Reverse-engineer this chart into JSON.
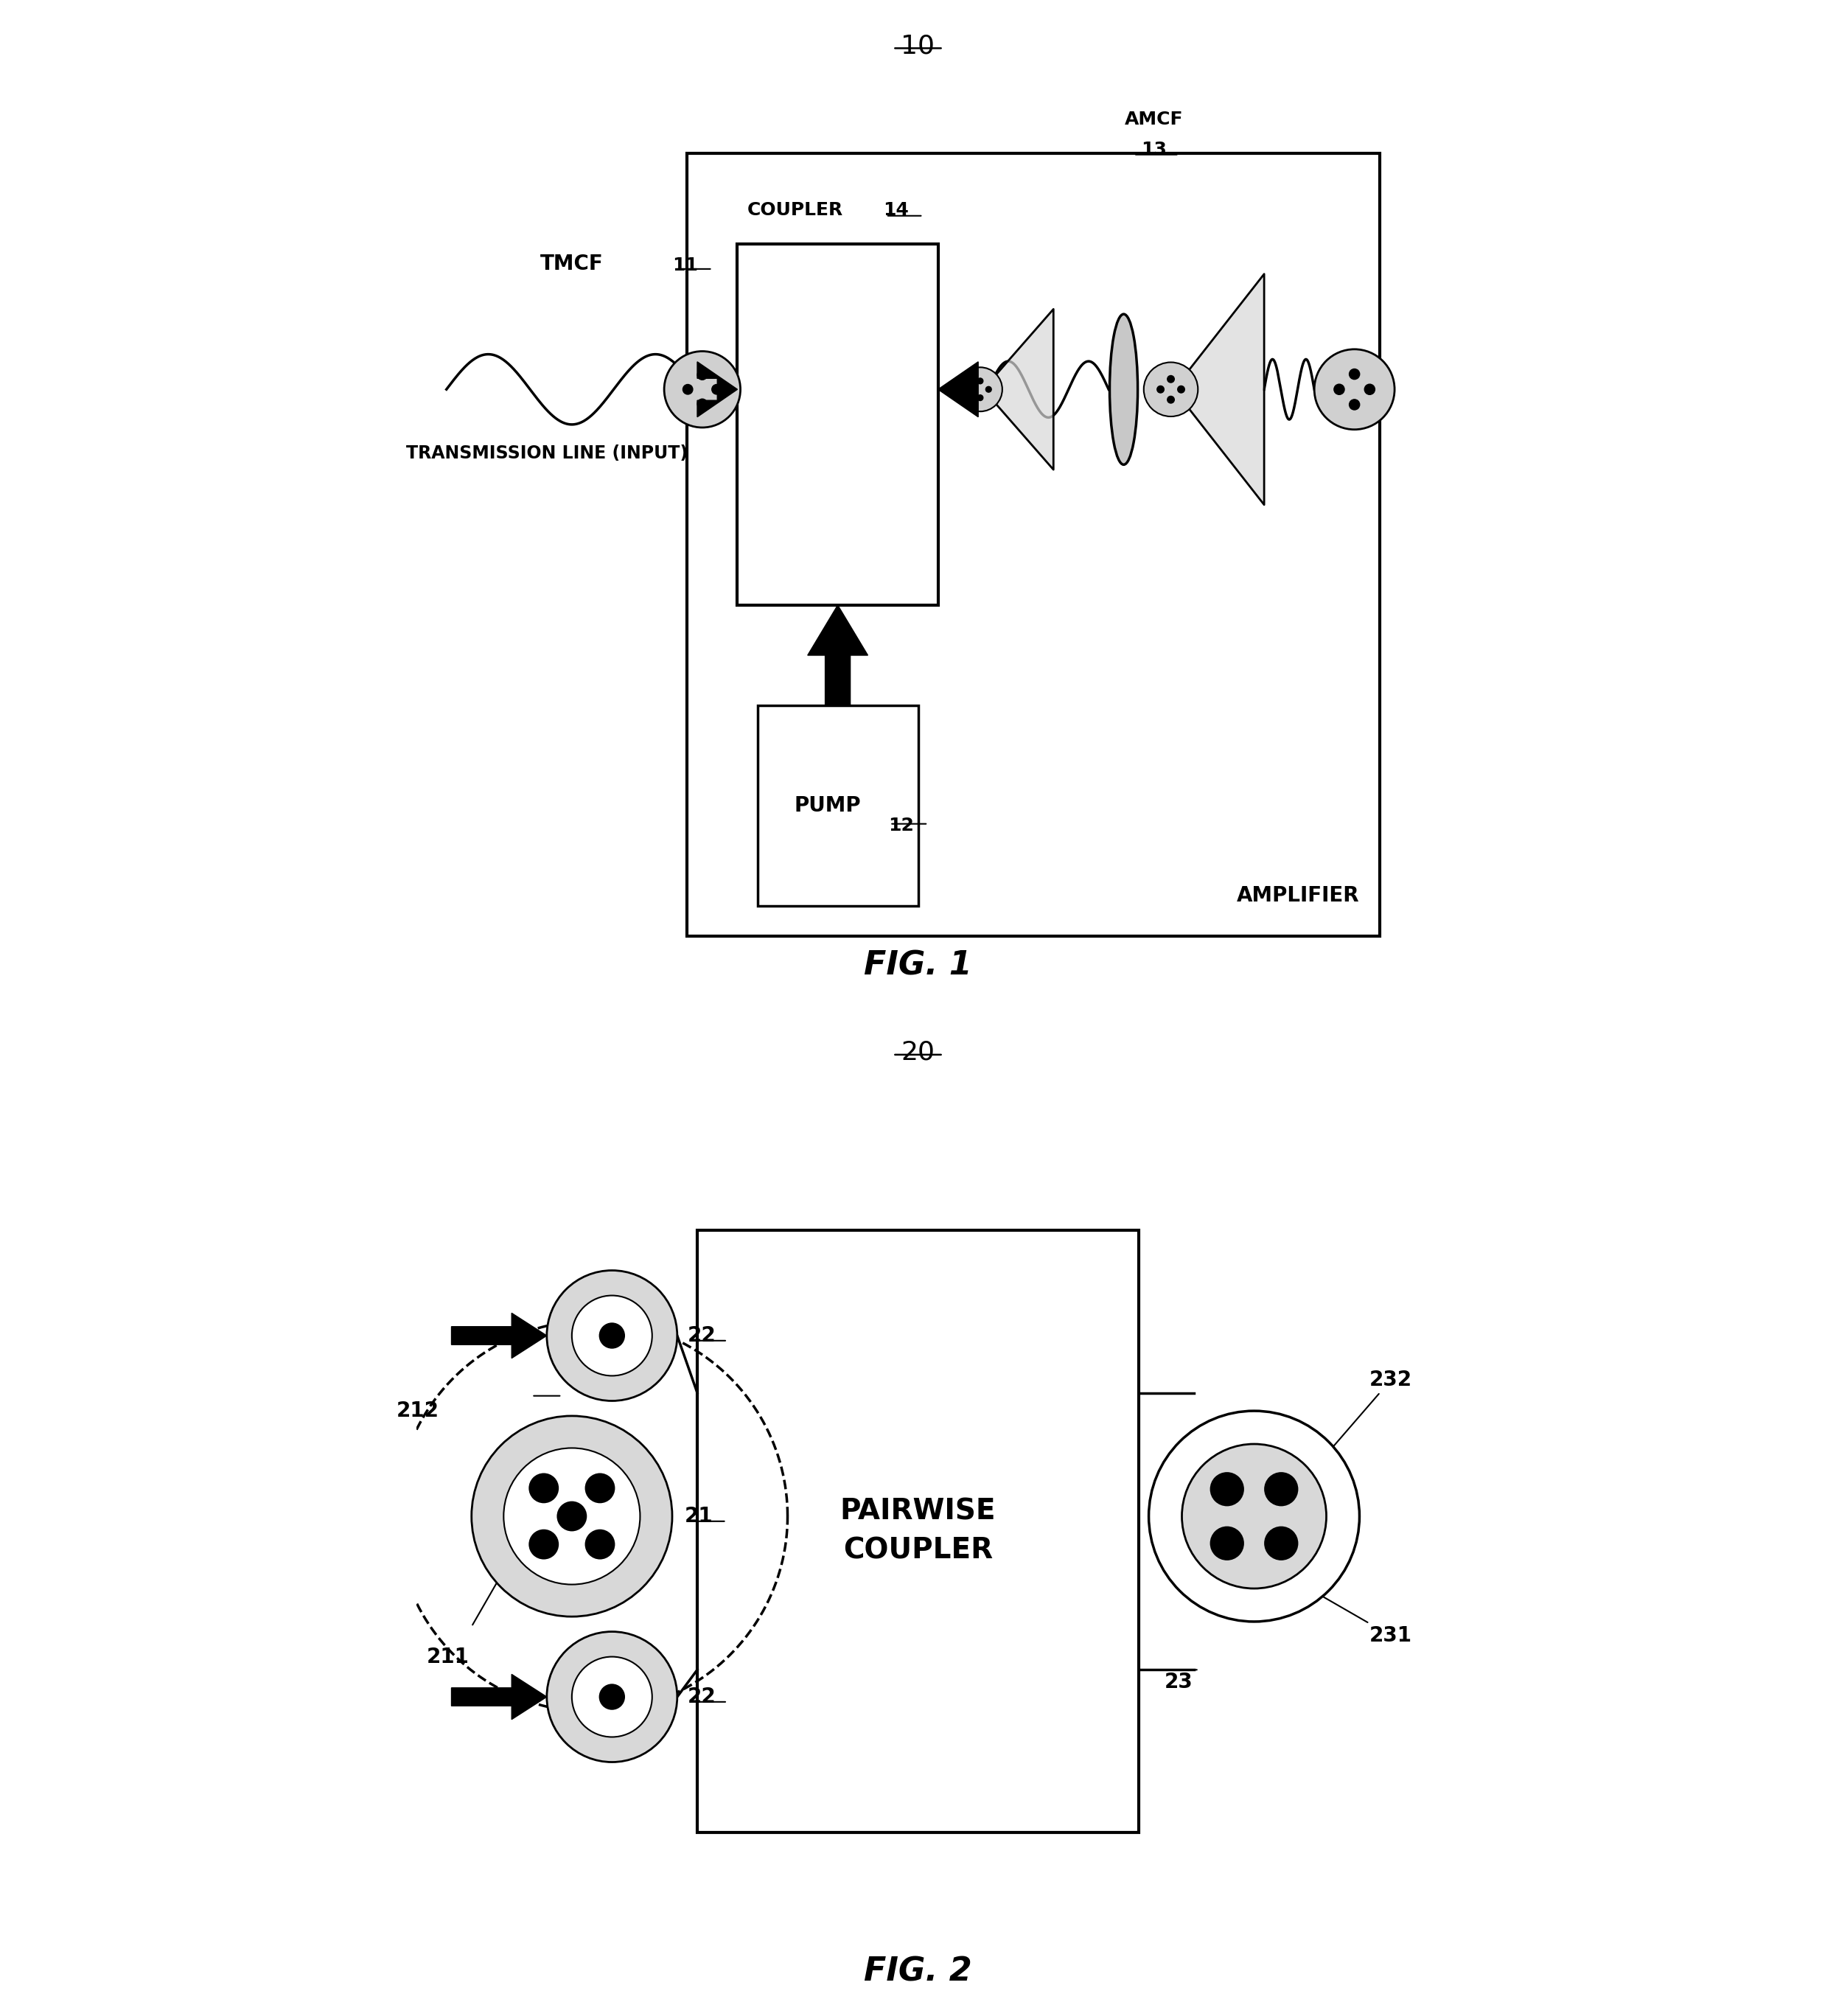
{
  "bg_color": "#ffffff",
  "fig1": {
    "label": "10",
    "coupler_label": "COUPLER",
    "coupler_num": "14",
    "amcf_label": "AMCF",
    "amcf_num": "13",
    "pump_label": "PUMP",
    "pump_num": "12",
    "amplifier_label": "AMPLIFIER",
    "tmcf_label": "TMCF",
    "tmcf_num": "11",
    "trans_label": "TRANSMISSION LINE (INPUT)",
    "fig_label": "FIG. 1"
  },
  "fig2": {
    "label": "20",
    "coupler_label": "PAIRWISE\nCOUPLER",
    "label_21": "21",
    "label_22_top": "22",
    "label_22_bot": "22",
    "label_211": "211",
    "label_212": "212",
    "label_23": "23",
    "label_231": "231",
    "label_232": "232",
    "fig_label": "FIG. 2"
  }
}
